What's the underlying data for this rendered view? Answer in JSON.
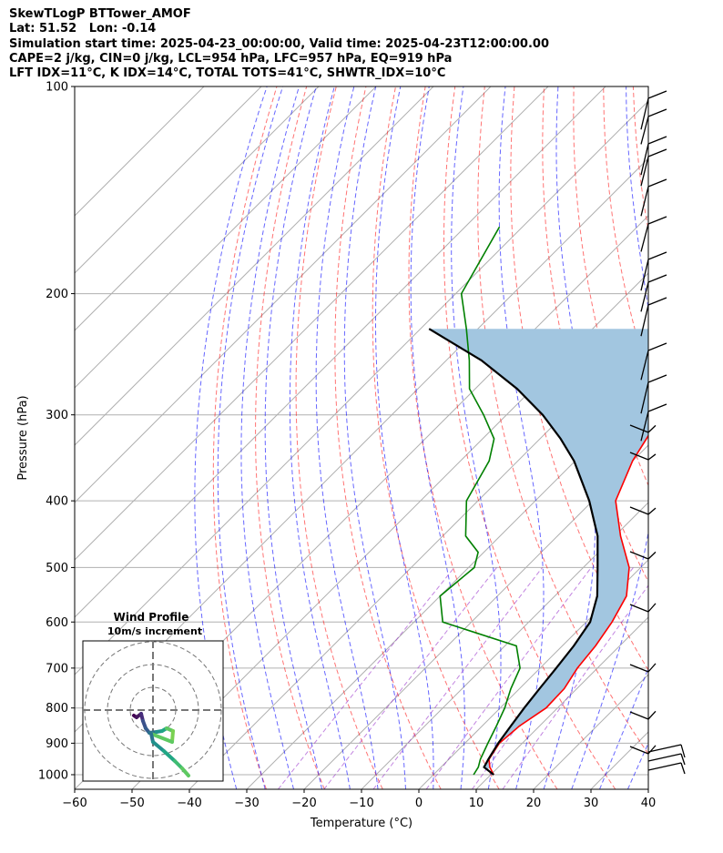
{
  "header": {
    "line1": "SkewTLogP BTTower_AMOF",
    "line2": "Lat: 51.52   Lon: -0.14",
    "line3": "Simulation start time: 2025-04-23_00:00:00, Valid time: 2025-04-23T12:00:00.00",
    "line4": "CAPE=2 j/kg, CIN=0 j/kg, LCL=954 hPa, LFC=957 hPa, EQ=919 hPa",
    "line5": "LFT IDX=11°C, K IDX=14°C, TOTAL TOTS=41°C, SHWTR_IDX=10°C"
  },
  "chart_data": [
    {
      "type": "line",
      "subtype": "skew-t log-p",
      "xlabel": "Temperature (°C)",
      "ylabel": "Pressure (hPa)",
      "xlim": [
        -60,
        40
      ],
      "ylim": [
        1050,
        100
      ],
      "log_y": true,
      "x_ticks": [
        "−60",
        "−50",
        "−40",
        "−30",
        "−20",
        "−10",
        "0",
        "10",
        "20",
        "30",
        "40"
      ],
      "y_ticks": [
        "100",
        "200",
        "300",
        "400",
        "500",
        "600",
        "700",
        "800",
        "900",
        "1000"
      ],
      "grid": true,
      "colors": {
        "temperature": "#ff0000",
        "dewpoint": "#008000",
        "parcel": "#000000",
        "cape_fill": "#a2c6e0",
        "dry_adiabat": "#ff0000",
        "moist_adiabat": "#0000ff",
        "mixing_ratio": "#9932cc"
      },
      "series": [
        {
          "color": "#ff0000",
          "x": [
            10.5,
            8.5,
            7,
            6,
            6.5,
            8,
            7.8,
            6.5,
            5.8,
            4.5,
            2.5,
            -2,
            -9,
            -16,
            -20,
            -23,
            -25,
            -30,
            -37,
            -45,
            -52,
            -60,
            -68
          ],
          "y": [
            1000,
            975,
            950,
            900,
            850,
            800,
            750,
            700,
            650,
            600,
            550,
            500,
            450,
            400,
            350,
            300,
            275,
            250,
            225,
            200,
            175,
            150,
            125
          ]
        },
        {
          "color": "#008000",
          "x": [
            7,
            6.5,
            5.5,
            4,
            2.5,
            0.8,
            -1.5,
            -3.5,
            -8,
            -25,
            -30,
            -29,
            -31,
            -36,
            -42,
            -45,
            -48,
            -54,
            -61,
            -66,
            -72,
            -79,
            -84
          ],
          "y": [
            1000,
            975,
            950,
            900,
            850,
            800,
            750,
            700,
            650,
            600,
            550,
            500,
            475,
            450,
            400,
            350,
            325,
            300,
            275,
            250,
            225,
            200,
            160
          ]
        },
        {
          "color": "#000000",
          "x": [
            10.5,
            7.5,
            6.9,
            5.8,
            5,
            4.2,
            3.5,
            2.8,
            2,
            0.7,
            -2.6,
            -7.5,
            -13,
            -20.6,
            -30.2,
            -36.4,
            -43.7,
            -52.7,
            -63.9,
            -78.5
          ],
          "y": [
            1000,
            975,
            950,
            900,
            850,
            800,
            750,
            700,
            650,
            600,
            550,
            500,
            450,
            400,
            350,
            325,
            300,
            275,
            250,
            225
          ]
        }
      ],
      "wind_barbs_count": 19
    },
    {
      "type": "scatter",
      "subtype": "hodograph",
      "title": "Wind Profile",
      "subtitle": "10m/s increment"
    }
  ]
}
